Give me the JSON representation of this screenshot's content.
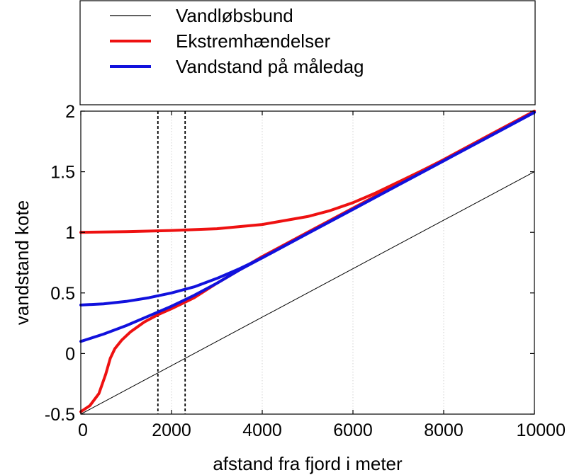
{
  "chart_data": {
    "type": "line",
    "title": "",
    "xlabel": "afstand fra fjord i meter",
    "ylabel": "vandstand kote",
    "xlim": [
      0,
      10000
    ],
    "ylim": [
      -0.5,
      2
    ],
    "xticks": [
      0,
      2000,
      4000,
      6000,
      8000,
      10000
    ],
    "xtick_labels": [
      "0",
      "2000",
      "4000",
      "6000",
      "8000",
      "10000"
    ],
    "yticks": [
      -0.5,
      0,
      0.5,
      1,
      1.5,
      2
    ],
    "ytick_labels": [
      "-0.5",
      "0",
      "0.5",
      "1",
      "1.5",
      "2"
    ],
    "grid": "vertical dotted lines at x = 2000, 4000, 6000, 8000",
    "vertical_markers": [
      1700,
      2300
    ],
    "legend": {
      "placement": "top",
      "entries": [
        {
          "label": "Vandløbsbund",
          "color": "#000000"
        },
        {
          "label": "Ekstremhændelser",
          "color": "#ee1111"
        },
        {
          "label": "Vandstand på måledag",
          "color": "#1111dd"
        }
      ]
    },
    "series": [
      {
        "name": "Vandløbsbund",
        "color": "#000000",
        "x": [
          0,
          10000
        ],
        "y": [
          -0.5,
          1.5
        ]
      },
      {
        "name": "Ekstremhændelser",
        "color": "#ee1111",
        "x": [
          0,
          1000,
          2000,
          3000,
          4000,
          5000,
          5500,
          6000,
          6500,
          7000,
          7500,
          8000,
          9000,
          10000
        ],
        "y": [
          1.0,
          1.005,
          1.015,
          1.03,
          1.065,
          1.13,
          1.18,
          1.245,
          1.325,
          1.415,
          1.505,
          1.6,
          1.8,
          2.0
        ]
      },
      {
        "name": "Ekstremhændelser",
        "color": "#ee1111",
        "x": [
          0,
          200,
          400,
          550,
          650,
          750,
          900,
          1100,
          1400,
          1700,
          2000,
          2500,
          3000,
          4000,
          5000,
          6000,
          7000,
          8000,
          9000,
          10000
        ],
        "y": [
          -0.48,
          -0.43,
          -0.33,
          -0.17,
          -0.04,
          0.04,
          0.11,
          0.18,
          0.26,
          0.32,
          0.37,
          0.46,
          0.58,
          0.8,
          1.0,
          1.2,
          1.4,
          1.6,
          1.8,
          2.0
        ]
      },
      {
        "name": "Vandstand på måledag",
        "color": "#1111dd",
        "x": [
          0,
          500,
          1000,
          1500,
          2000,
          2500,
          3000,
          3500,
          4000,
          5000,
          6000,
          7000,
          8000,
          9000,
          10000
        ],
        "y": [
          0.4,
          0.41,
          0.43,
          0.46,
          0.5,
          0.55,
          0.62,
          0.7,
          0.79,
          0.99,
          1.19,
          1.39,
          1.59,
          1.79,
          1.99
        ]
      },
      {
        "name": "Vandstand på måledag",
        "color": "#1111dd",
        "x": [
          0,
          500,
          1000,
          1500,
          2000,
          2500,
          3000,
          3500,
          4000,
          5000,
          6000,
          7000,
          8000,
          9000,
          10000
        ],
        "y": [
          0.1,
          0.16,
          0.23,
          0.31,
          0.39,
          0.48,
          0.58,
          0.69,
          0.79,
          0.99,
          1.19,
          1.39,
          1.59,
          1.79,
          1.99
        ]
      }
    ]
  }
}
